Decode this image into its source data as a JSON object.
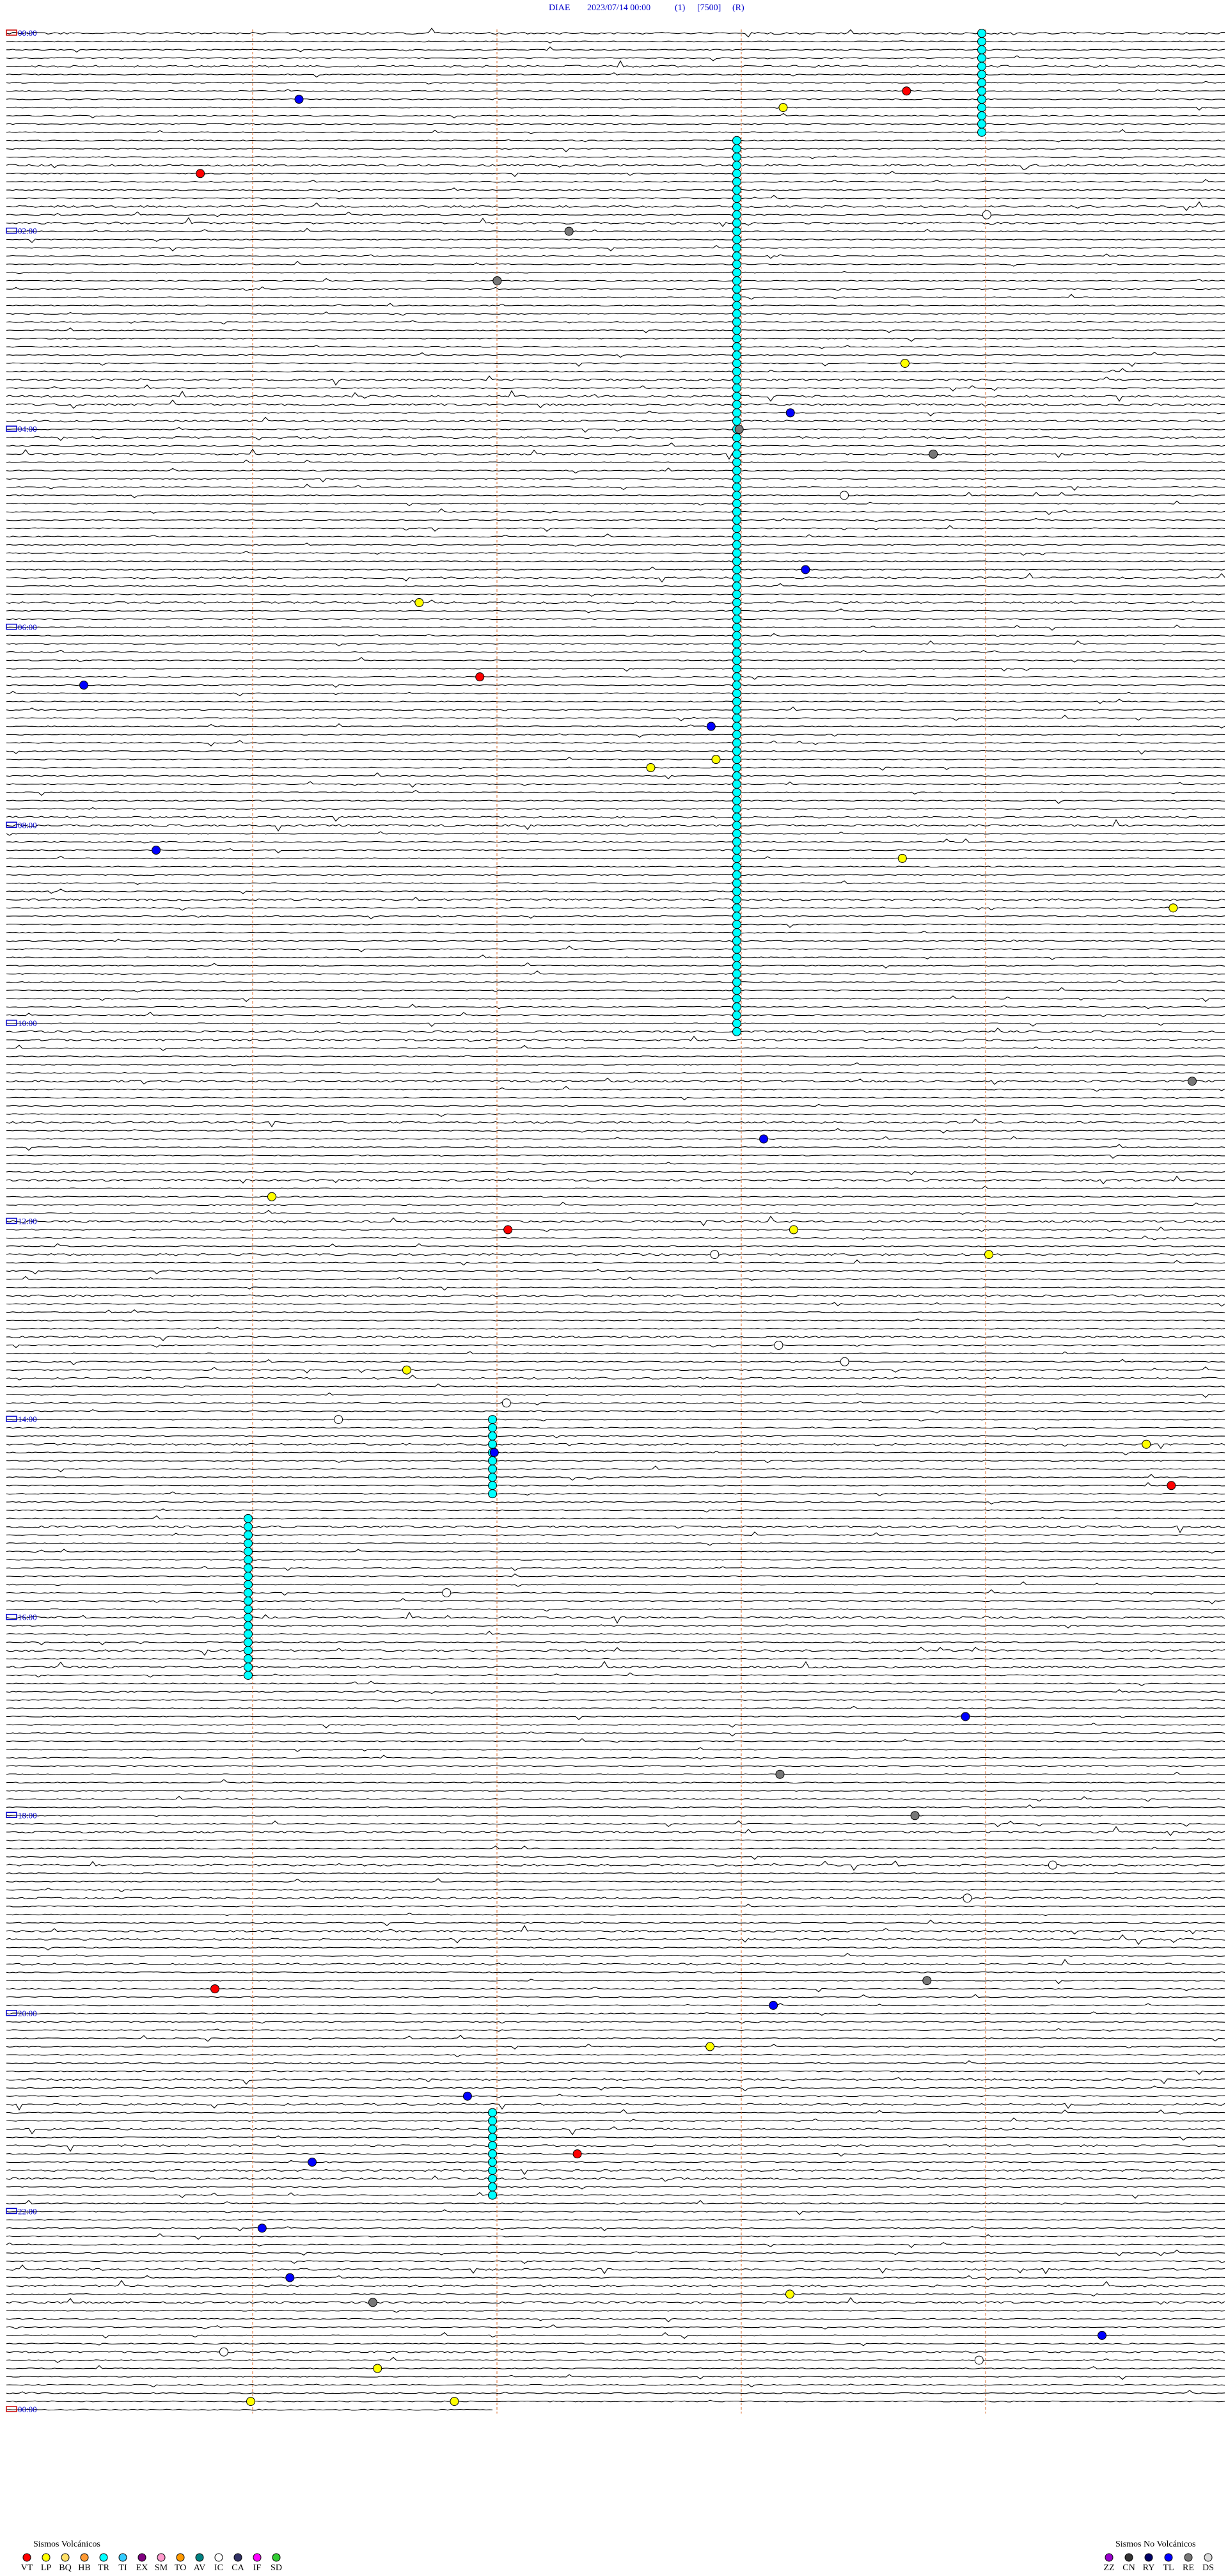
{
  "header": {
    "station": "DIAE",
    "datetime": "2023/07/14 00:00",
    "channel": "(1)",
    "scale": "[7500]",
    "mode": "(R)"
  },
  "time_labels": [
    "00:00",
    "02:00",
    "04:00",
    "06:00",
    "08:00",
    "10:00",
    "12:00",
    "14:00",
    "16:00",
    "18:00",
    "20:00",
    "22:00",
    "00:00"
  ],
  "legend_volcanic": {
    "title": "Sismos Volcánicos",
    "items": [
      {
        "label": "VT",
        "color": "#ff0000"
      },
      {
        "label": "LP",
        "color": "#ffff00"
      },
      {
        "label": "BQ",
        "color": "#ffe066"
      },
      {
        "label": "HB",
        "color": "#ff9933"
      },
      {
        "label": "TR",
        "color": "#00ffff"
      },
      {
        "label": "TI",
        "color": "#33ccff"
      },
      {
        "label": "EX",
        "color": "#800080"
      },
      {
        "label": "SM",
        "color": "#ff99cc"
      },
      {
        "label": "TO",
        "color": "#ff9900"
      },
      {
        "label": "AV",
        "color": "#008080"
      },
      {
        "label": "IC",
        "color": "#ffffff"
      },
      {
        "label": "CA",
        "color": "#333366"
      },
      {
        "label": "IF",
        "color": "#ff00ff"
      },
      {
        "label": "SD",
        "color": "#33cc33"
      }
    ]
  },
  "legend_nonvolcanic": {
    "title": "Sismos No Volcánicos",
    "items": [
      {
        "label": "ZZ",
        "color": "#9900cc"
      },
      {
        "label": "CN",
        "color": "#333333"
      },
      {
        "label": "RY",
        "color": "#000066"
      },
      {
        "label": "TL",
        "color": "#0000ff"
      },
      {
        "label": "RE",
        "color": "#777777"
      },
      {
        "label": "DS",
        "color": "#dddddd"
      }
    ]
  }
}
